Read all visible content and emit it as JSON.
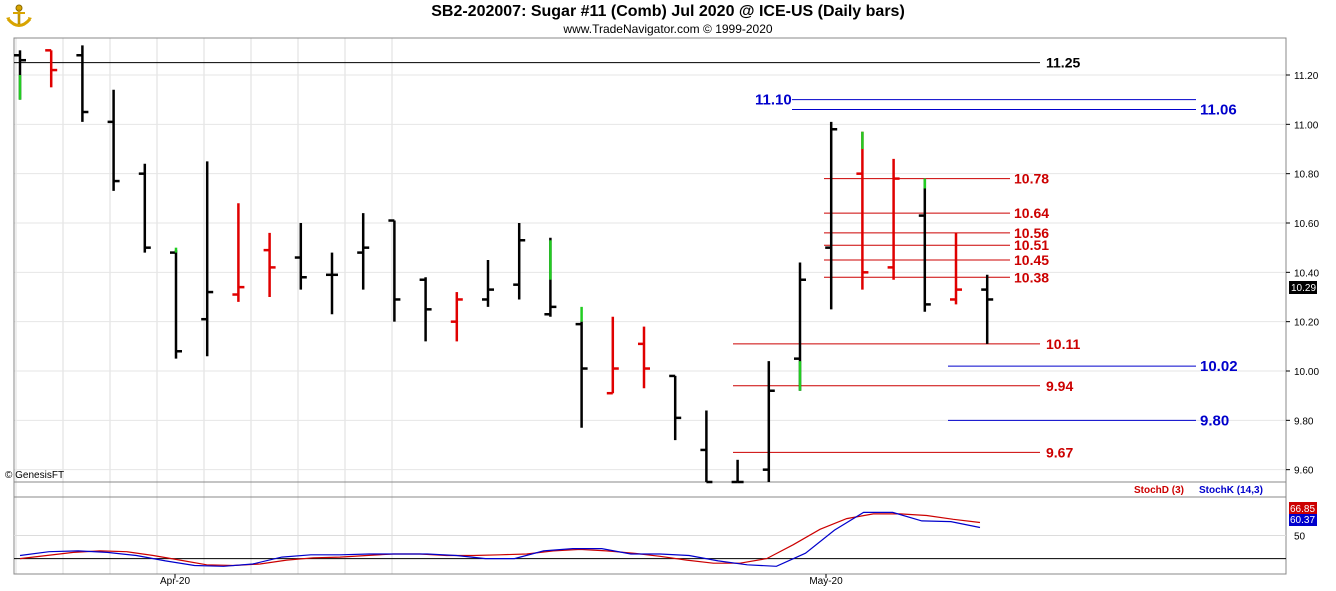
{
  "header": {
    "title": "SB2-202007:  Sugar #11 (Comb) Jul 2020 @ ICE-US  (Daily bars)",
    "subtitle": "www.TradeNavigator.com © 1999-2020",
    "copyright": "© GenesisFT"
  },
  "chart_data": [
    {
      "type": "ohlc",
      "ylim": [
        9.55,
        11.35
      ],
      "y_ticks": [
        9.6,
        9.8,
        10.0,
        10.2,
        10.4,
        10.6,
        10.8,
        11.0,
        11.2
      ],
      "x_tick_labels": [
        "Apr-20",
        "May-20"
      ],
      "last_price": "10.29",
      "colors": {
        "up": "#000000",
        "down": "#e00000",
        "highlight": "#22cc22"
      },
      "bars": [
        {
          "o": 11.28,
          "h": 11.3,
          "l": 11.1,
          "c": 11.26,
          "color": "black"
        },
        {
          "o": 11.3,
          "h": 11.3,
          "l": 11.15,
          "c": 11.22,
          "color": "red"
        },
        {
          "o": 11.28,
          "h": 11.32,
          "l": 11.01,
          "c": 11.05,
          "color": "black"
        },
        {
          "o": 11.01,
          "h": 11.14,
          "l": 10.73,
          "c": 10.77,
          "color": "black"
        },
        {
          "o": 10.8,
          "h": 10.84,
          "l": 10.48,
          "c": 10.5,
          "color": "black"
        },
        {
          "o": 10.48,
          "h": 10.49,
          "l": 10.05,
          "c": 10.08,
          "color": "black"
        },
        {
          "o": 10.21,
          "h": 10.85,
          "l": 10.06,
          "c": 10.32,
          "color": "black"
        },
        {
          "o": 10.31,
          "h": 10.68,
          "l": 10.28,
          "c": 10.34,
          "color": "red"
        },
        {
          "o": 10.49,
          "h": 10.56,
          "l": 10.3,
          "c": 10.42,
          "color": "red"
        },
        {
          "o": 10.46,
          "h": 10.6,
          "l": 10.33,
          "c": 10.38,
          "color": "black"
        },
        {
          "o": 10.39,
          "h": 10.48,
          "l": 10.23,
          "c": 10.39,
          "color": "black"
        },
        {
          "o": 10.48,
          "h": 10.64,
          "l": 10.33,
          "c": 10.5,
          "color": "black"
        },
        {
          "o": 10.61,
          "h": 10.61,
          "l": 10.2,
          "c": 10.29,
          "color": "black"
        },
        {
          "o": 10.37,
          "h": 10.38,
          "l": 10.12,
          "c": 10.25,
          "color": "black"
        },
        {
          "o": 10.2,
          "h": 10.32,
          "l": 10.12,
          "c": 10.29,
          "color": "red"
        },
        {
          "o": 10.29,
          "h": 10.45,
          "l": 10.26,
          "c": 10.33,
          "color": "black"
        },
        {
          "o": 10.35,
          "h": 10.6,
          "l": 10.29,
          "c": 10.53,
          "color": "black"
        },
        {
          "o": 10.23,
          "h": 10.54,
          "l": 10.22,
          "c": 10.26,
          "color": "black"
        },
        {
          "o": 10.19,
          "h": 10.2,
          "l": 9.77,
          "c": 10.01,
          "color": "black"
        },
        {
          "o": 9.91,
          "h": 10.22,
          "l": 9.91,
          "c": 10.01,
          "color": "red"
        },
        {
          "o": 10.11,
          "h": 10.18,
          "l": 9.93,
          "c": 10.01,
          "color": "red"
        },
        {
          "o": 9.98,
          "h": 9.98,
          "l": 9.72,
          "c": 9.81,
          "color": "black"
        },
        {
          "o": 9.68,
          "h": 9.84,
          "l": 9.55,
          "c": 9.55,
          "color": "black"
        },
        {
          "o": 9.55,
          "h": 9.64,
          "l": 9.55,
          "c": 9.55,
          "color": "black"
        },
        {
          "o": 9.6,
          "h": 10.04,
          "l": 9.55,
          "c": 9.92,
          "color": "black"
        },
        {
          "o": 10.05,
          "h": 10.44,
          "l": 9.92,
          "c": 10.37,
          "color": "black"
        },
        {
          "o": 10.5,
          "h": 11.01,
          "l": 10.25,
          "c": 10.98,
          "color": "black"
        },
        {
          "o": 10.8,
          "h": 10.97,
          "l": 10.33,
          "c": 10.4,
          "color": "red"
        },
        {
          "o": 10.42,
          "h": 10.86,
          "l": 10.37,
          "c": 10.78,
          "color": "red"
        },
        {
          "o": 10.63,
          "h": 10.78,
          "l": 10.24,
          "c": 10.27,
          "color": "black"
        },
        {
          "o": 10.29,
          "h": 10.56,
          "l": 10.27,
          "c": 10.33,
          "color": "red"
        },
        {
          "o": 10.33,
          "h": 10.39,
          "l": 10.11,
          "c": 10.29,
          "color": "black"
        }
      ],
      "levels": [
        {
          "value": 11.25,
          "label": "11.25",
          "color": "#000000"
        },
        {
          "value": 11.1,
          "label": "11.10",
          "color": "#0000cc"
        },
        {
          "value": 11.06,
          "label": "11.06",
          "color": "#0000cc"
        },
        {
          "value": 10.78,
          "label": "10.78",
          "color": "#cc0000"
        },
        {
          "value": 10.64,
          "label": "10.64",
          "color": "#cc0000"
        },
        {
          "value": 10.56,
          "label": "10.56",
          "color": "#cc0000"
        },
        {
          "value": 10.51,
          "label": "10.51",
          "color": "#cc0000"
        },
        {
          "value": 10.45,
          "label": "10.45",
          "color": "#cc0000"
        },
        {
          "value": 10.38,
          "label": "10.38",
          "color": "#cc0000"
        },
        {
          "value": 10.11,
          "label": "10.11",
          "color": "#cc0000"
        },
        {
          "value": 10.02,
          "label": "10.02",
          "color": "#0000cc"
        },
        {
          "value": 9.94,
          "label": "9.94",
          "color": "#cc0000"
        },
        {
          "value": 9.8,
          "label": "9.80",
          "color": "#0000cc"
        },
        {
          "value": 9.67,
          "label": "9.67",
          "color": "#cc0000"
        }
      ]
    },
    {
      "type": "line",
      "ylim": [
        0,
        100
      ],
      "y_ticks": [
        50
      ],
      "legend": [
        {
          "name": "StochD (3)",
          "color": "#cc0000"
        },
        {
          "name": "StochK (14,3)",
          "color": "#0000cc"
        }
      ],
      "last_values": {
        "d": "66.85",
        "k": "60.37"
      },
      "series": [
        {
          "name": "StochD (3)",
          "color": "#cc0000",
          "values": [
            20,
            24,
            28,
            30,
            29,
            24,
            18,
            12,
            11,
            13,
            18,
            21,
            22,
            24,
            26,
            26,
            24,
            24,
            25,
            26,
            30,
            32,
            30,
            27,
            23,
            18,
            14,
            14,
            20,
            38,
            58,
            72,
            78,
            78,
            76,
            71,
            66.85
          ]
        },
        {
          "name": "StochK (14,3)",
          "color": "#0000cc",
          "values": [
            24,
            29,
            30,
            28,
            24,
            17,
            11,
            10,
            13,
            22,
            25,
            25,
            26,
            26,
            26,
            24,
            20,
            20,
            30,
            33,
            33,
            26,
            26,
            24,
            17,
            12,
            10,
            27,
            57,
            80,
            80,
            69,
            68,
            60.37
          ]
        }
      ]
    }
  ]
}
